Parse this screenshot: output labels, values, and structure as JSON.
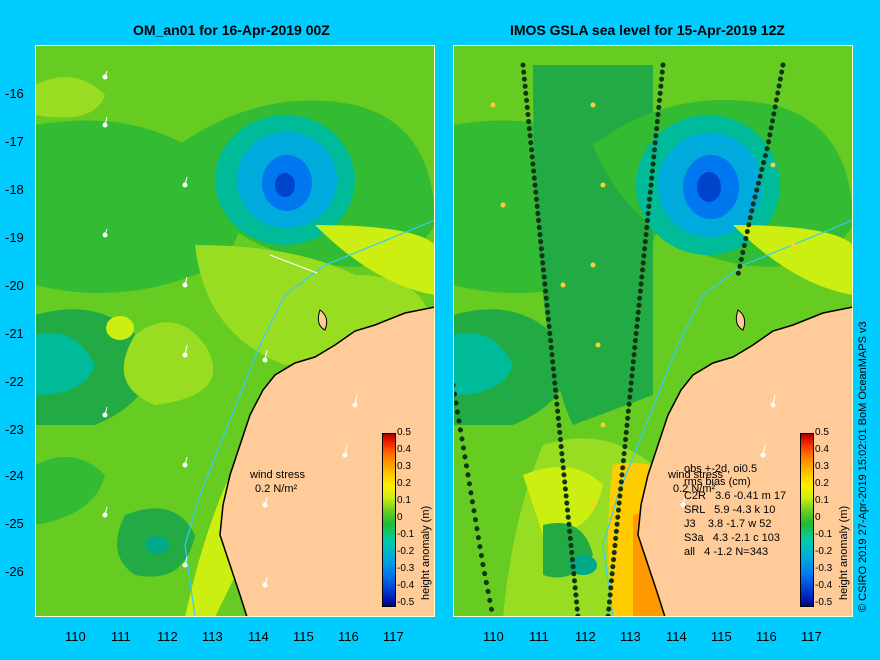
{
  "left_panel": {
    "title": "OM_an01 for 16-Apr-2019 00Z",
    "wind_label": "wind stress",
    "wind_value": "0.2 N/m²"
  },
  "right_panel": {
    "title": "IMOS GSLA sea level  for 15-Apr-2019 12Z",
    "wind_label": "wind stress",
    "wind_value": "0.2 N/m²",
    "stats_header": "obs +-2d, oi0.5",
    "stats_sub": "rms bias (cm)",
    "stats_rows": [
      "C2R   3.6 -0.41 m 17",
      "SRL   5.9 -4.3 k 10",
      "J3    3.8 -1.7 w 52",
      "S3a   4.3 -2.1 c 103",
      "all   4 -1.2 N=343"
    ]
  },
  "y_ticks": [
    "-16",
    "-17",
    "-18",
    "-19",
    "-20",
    "-21",
    "-22",
    "-23",
    "-24",
    "-25",
    "-26"
  ],
  "x_ticks": [
    "110",
    "111",
    "112",
    "113",
    "114",
    "115",
    "116",
    "117"
  ],
  "colorbar": {
    "labels": [
      "0.5",
      "0.4",
      "0.3",
      "0.2",
      "0.1",
      "0",
      "-0.1",
      "-0.2",
      "-0.3",
      "-0.4",
      "-0.5"
    ],
    "title": "height anomaly (m)",
    "colors": [
      "#00008b",
      "#0033cc",
      "#0077ee",
      "#00aadd",
      "#00ccaa",
      "#22bb33",
      "#44cc22",
      "#88dd22",
      "#ccee11",
      "#ffee00",
      "#ffcc00",
      "#ff9900",
      "#ff6600",
      "#ee2200",
      "#aa0000"
    ]
  },
  "credit": "© CSIRO 2019  27-Apr-2019 15:02:01 BoM OceanMAPS v3",
  "map_colors": {
    "ocean_base": "#66cc22",
    "land": "#ffcc99",
    "coast": "#000000",
    "border": "#ffffcc",
    "isobath": "#33ccff"
  }
}
